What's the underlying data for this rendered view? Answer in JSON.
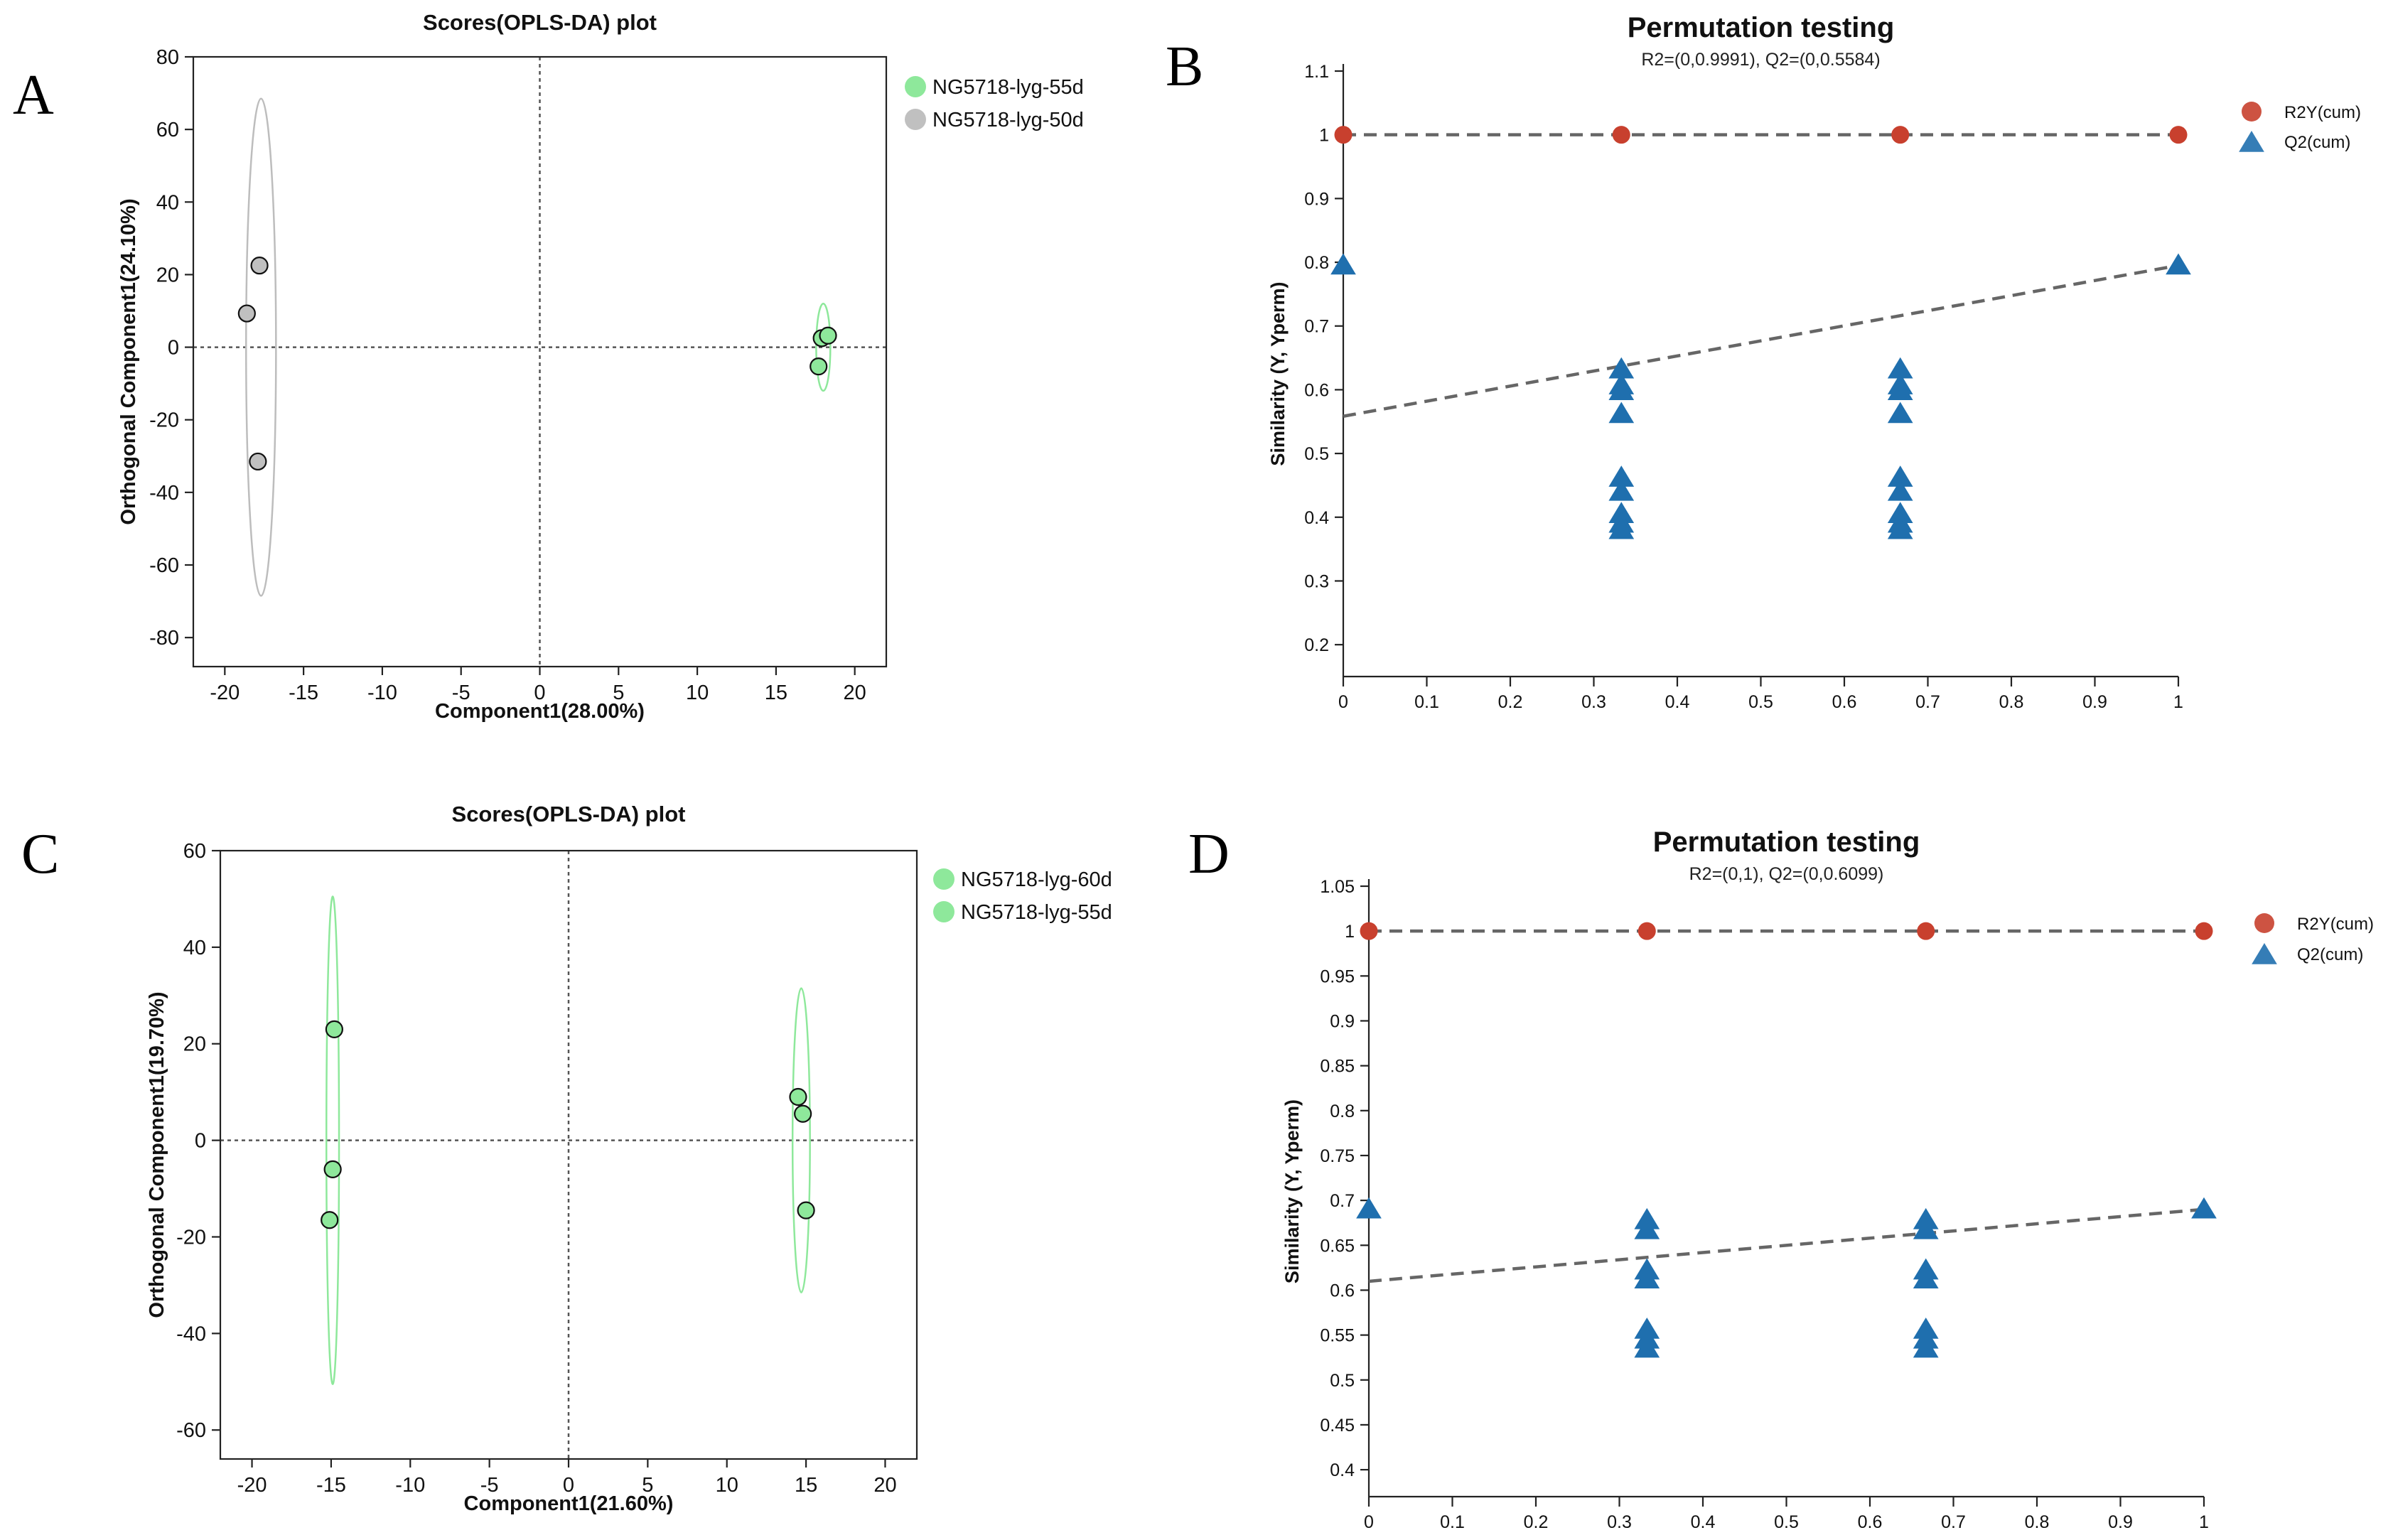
{
  "panel_letters": [
    "A",
    "B",
    "C",
    "D"
  ],
  "colors": {
    "green_point": "#8ee89b",
    "gray_point": "#c0c0c0",
    "green_ellipse": "#8ee89b",
    "gray_ellipse": "#bdbdbd",
    "r2y": "#c8402e",
    "q2": "#1f6fae",
    "dashed_line": "#666666",
    "axis": "#000000"
  },
  "chart_data": [
    {
      "panel": "A",
      "type": "scatter",
      "title": "Scores(OPLS-DA) plot",
      "xlabel": "Component1(28.00%)",
      "ylabel": "Orthogonal Component1(24.10%)",
      "xlim": [
        -22,
        22
      ],
      "ylim": [
        -88,
        80
      ],
      "xticks": [
        -20,
        -15,
        -10,
        -5,
        0,
        5,
        10,
        15,
        20
      ],
      "yticks": [
        -80,
        -60,
        -40,
        -20,
        0,
        20,
        40,
        60,
        80
      ],
      "legend_position": "right",
      "series": [
        {
          "name": "NG5718-lyg-55d",
          "color": "#8ee89b",
          "points": [
            [
              17.9,
              2.5
            ],
            [
              18.3,
              3.2
            ],
            [
              17.7,
              -5.3
            ]
          ],
          "ellipse": {
            "cx": 18.0,
            "cy": 0.0,
            "rx": 0.45,
            "ry": 12.0,
            "color": "#8ee89b"
          }
        },
        {
          "name": "NG5718-lyg-50d",
          "color": "#c0c0c0",
          "points": [
            [
              -17.8,
              22.5
            ],
            [
              -18.6,
              9.3
            ],
            [
              -17.9,
              -31.5
            ]
          ],
          "ellipse": {
            "cx": -17.7,
            "cy": 0.0,
            "rx": 0.95,
            "ry": 68.5,
            "color": "#bdbdbd"
          }
        }
      ]
    },
    {
      "panel": "B",
      "type": "scatter",
      "title": "Permutation testing",
      "subtitle": "R2=(0,0.9991), Q2=(0,0.5584)",
      "xlabel": "",
      "ylabel": "Similarity (Y, Yperm)",
      "xlim": [
        0,
        1
      ],
      "ylim": [
        0.15,
        1.1
      ],
      "xticks": [
        "0",
        "0.1",
        "0.2",
        "0.3",
        "0.4",
        "0.5",
        "0.6",
        "0.7",
        "0.8",
        "0.9",
        "1"
      ],
      "yticks": [
        "0.2",
        "0.3",
        "0.4",
        "0.5",
        "0.6",
        "0.7",
        "0.8",
        "0.9",
        "1",
        "1.1"
      ],
      "legend_position": "top-right",
      "series": [
        {
          "name": "R2Y(cum)",
          "marker": "circle",
          "color": "#c8402e",
          "points": [
            [
              0,
              1.0
            ],
            [
              0.333,
              1.0
            ],
            [
              0.667,
              1.0
            ],
            [
              1,
              1.0
            ]
          ]
        },
        {
          "name": "Q2(cum)",
          "marker": "triangle",
          "color": "#1f6fae",
          "points": [
            [
              0,
              0.795
            ],
            [
              1,
              0.795
            ],
            [
              0.333,
              0.632
            ],
            [
              0.333,
              0.607
            ],
            [
              0.333,
              0.598
            ],
            [
              0.333,
              0.562
            ],
            [
              0.333,
              0.462
            ],
            [
              0.333,
              0.44
            ],
            [
              0.333,
              0.405
            ],
            [
              0.333,
              0.39
            ],
            [
              0.333,
              0.38
            ],
            [
              0.667,
              0.632
            ],
            [
              0.667,
              0.607
            ],
            [
              0.667,
              0.598
            ],
            [
              0.667,
              0.562
            ],
            [
              0.667,
              0.462
            ],
            [
              0.667,
              0.44
            ],
            [
              0.667,
              0.405
            ],
            [
              0.667,
              0.39
            ],
            [
              0.667,
              0.38
            ]
          ]
        }
      ],
      "lines": [
        {
          "from": [
            0,
            1.0
          ],
          "to": [
            1,
            1.0
          ]
        },
        {
          "from": [
            0,
            0.5584
          ],
          "to": [
            1,
            0.795
          ]
        }
      ]
    },
    {
      "panel": "C",
      "type": "scatter",
      "title": "Scores(OPLS-DA) plot",
      "xlabel": "Component1(21.60%)",
      "ylabel": "Orthogonal Component1(19.70%)",
      "xlim": [
        -22,
        22
      ],
      "ylim": [
        -66,
        60
      ],
      "xticks": [
        -20,
        -15,
        -10,
        -5,
        0,
        5,
        10,
        15,
        20
      ],
      "yticks": [
        -60,
        -40,
        -20,
        0,
        20,
        40,
        60
      ],
      "legend_position": "right",
      "series": [
        {
          "name": "NG5718-lyg-60d",
          "color": "#8ee89b",
          "points": [
            [
              14.5,
              9.0
            ],
            [
              14.8,
              5.5
            ],
            [
              15.0,
              -14.5
            ]
          ],
          "ellipse": {
            "cx": 14.7,
            "cy": 0.0,
            "rx": 0.55,
            "ry": 31.5,
            "color": "#8ee89b"
          }
        },
        {
          "name": "NG5718-lyg-55d",
          "color": "#8ee89b",
          "points": [
            [
              -14.8,
              23.0
            ],
            [
              -14.9,
              -6.0
            ],
            [
              -15.1,
              -16.5
            ]
          ],
          "ellipse": {
            "cx": -14.9,
            "cy": 0.0,
            "rx": 0.4,
            "ry": 50.5,
            "color": "#8ee89b"
          }
        }
      ]
    },
    {
      "panel": "D",
      "type": "scatter",
      "title": "Permutation testing",
      "subtitle": "R2=(0,1), Q2=(0,0.6099)",
      "xlabel": "",
      "ylabel": "Similarity (Y, Yperm)",
      "xlim": [
        0,
        1
      ],
      "ylim": [
        0.37,
        1.05
      ],
      "xticks": [
        "0",
        "0.1",
        "0.2",
        "0.3",
        "0.4",
        "0.5",
        "0.6",
        "0.7",
        "0.8",
        "0.9",
        "1"
      ],
      "yticks": [
        "0.4",
        "0.45",
        "0.5",
        "0.55",
        "0.6",
        "0.65",
        "0.7",
        "0.75",
        "0.8",
        "0.85",
        "0.9",
        "0.95",
        "1",
        "1.05"
      ],
      "legend_position": "top-right",
      "series": [
        {
          "name": "R2Y(cum)",
          "marker": "circle",
          "color": "#c8402e",
          "points": [
            [
              0,
              1.0
            ],
            [
              0.333,
              1.0
            ],
            [
              0.667,
              1.0
            ],
            [
              1,
              1.0
            ]
          ]
        },
        {
          "name": "Q2(cum)",
          "marker": "triangle",
          "color": "#1f6fae",
          "points": [
            [
              0,
              0.69
            ],
            [
              1,
              0.69
            ],
            [
              0.333,
              0.678
            ],
            [
              0.333,
              0.667
            ],
            [
              0.333,
              0.622
            ],
            [
              0.333,
              0.612
            ],
            [
              0.333,
              0.556
            ],
            [
              0.333,
              0.545
            ],
            [
              0.333,
              0.535
            ],
            [
              0.667,
              0.678
            ],
            [
              0.667,
              0.667
            ],
            [
              0.667,
              0.622
            ],
            [
              0.667,
              0.612
            ],
            [
              0.667,
              0.556
            ],
            [
              0.667,
              0.545
            ],
            [
              0.667,
              0.535
            ]
          ]
        }
      ],
      "lines": [
        {
          "from": [
            0,
            1.0
          ],
          "to": [
            1,
            1.0
          ]
        },
        {
          "from": [
            0,
            0.6099
          ],
          "to": [
            1,
            0.69
          ]
        }
      ]
    }
  ]
}
